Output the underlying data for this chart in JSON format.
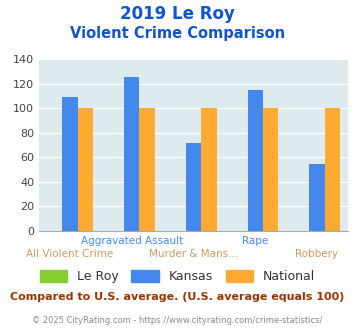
{
  "title_line1": "2019 Le Roy",
  "title_line2": "Violent Crime Comparison",
  "categories": [
    "All Violent Crime",
    "Aggravated Assault",
    "Murder & Mans...",
    "Rape",
    "Robbery"
  ],
  "series": {
    "Le Roy": [
      0,
      0,
      0,
      0,
      0
    ],
    "Kansas": [
      109,
      126,
      72,
      115,
      55
    ],
    "National": [
      100,
      100,
      100,
      100,
      100
    ]
  },
  "colors": {
    "Le Roy": "#88cc33",
    "Kansas": "#4488ee",
    "National": "#ffaa33"
  },
  "ylim": [
    0,
    140
  ],
  "yticks": [
    0,
    20,
    40,
    60,
    80,
    100,
    120,
    140
  ],
  "plot_bg_color": "#ddeaee",
  "title_color": "#1155cc",
  "footer_text": "Compared to U.S. average. (U.S. average equals 100)",
  "copyright_text": "© 2025 CityRating.com - https://www.cityrating.com/crime-statistics/",
  "footer_color": "#993300",
  "copyright_color": "#888899",
  "x_label_top": [
    "",
    "Aggravated Assault",
    "",
    "Rape",
    ""
  ],
  "x_label_bottom": [
    "All Violent Crime",
    "",
    "Murder & Mans...",
    "",
    "Robbery"
  ],
  "top_label_color": "#4488ee",
  "bottom_label_color": "#cc9966"
}
